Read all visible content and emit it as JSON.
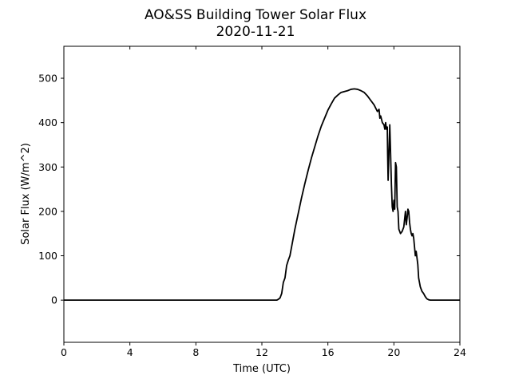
{
  "chart_data": {
    "type": "line",
    "title": "AO&SS Building Tower Solar Flux",
    "subtitle": "2020-11-21",
    "xlabel": "Time (UTC)",
    "ylabel": "Solar Flux (W/m^2)",
    "xlim": [
      0,
      24
    ],
    "ylim": [
      -95,
      572
    ],
    "xticks": [
      "0",
      "4",
      "8",
      "12",
      "16",
      "20",
      "24"
    ],
    "yticks": [
      "0",
      "100",
      "200",
      "300",
      "400",
      "500"
    ],
    "grid": false,
    "line_color": "#000000",
    "series": [
      {
        "x": [
          0,
          12.9,
          13.0,
          13.1,
          13.2,
          13.3,
          13.4,
          13.5,
          13.6,
          13.7,
          13.8,
          13.9,
          14.0,
          14.2,
          14.4,
          14.6,
          14.8,
          15.0,
          15.2,
          15.4,
          15.6,
          15.8,
          16.0,
          16.2,
          16.4,
          16.6,
          16.8,
          17.0,
          17.2,
          17.4,
          17.6,
          17.8,
          18.0,
          18.2,
          18.4,
          18.6,
          18.8,
          19.0,
          19.1,
          19.15,
          19.2,
          19.3,
          19.4,
          19.45,
          19.5,
          19.55,
          19.6,
          19.62,
          19.65,
          19.7,
          19.75,
          19.8,
          19.85,
          19.9,
          19.95,
          20.0,
          20.05,
          20.1,
          20.15,
          20.2,
          20.25,
          20.3,
          20.35,
          20.4,
          20.5,
          20.6,
          20.7,
          20.75,
          20.8,
          20.85,
          20.9,
          20.95,
          21.0,
          21.05,
          21.1,
          21.15,
          21.2,
          21.25,
          21.3,
          21.35,
          21.4,
          21.45,
          21.5,
          21.55,
          21.6,
          21.65,
          21.7,
          21.8,
          21.9,
          22.0,
          22.1,
          22.2,
          22.3,
          22.4,
          22.5,
          24
        ],
        "y": [
          0,
          0,
          2,
          5,
          15,
          40,
          50,
          78,
          90,
          100,
          120,
          140,
          160,
          195,
          230,
          262,
          292,
          320,
          345,
          370,
          392,
          410,
          428,
          442,
          455,
          462,
          468,
          470,
          472,
          475,
          476,
          475,
          472,
          468,
          460,
          450,
          440,
          425,
          430,
          410,
          415,
          400,
          395,
          385,
          400,
          385,
          390,
          330,
          270,
          330,
          395,
          330,
          260,
          210,
          200,
          225,
          205,
          310,
          300,
          210,
          200,
          160,
          155,
          150,
          155,
          165,
          200,
          170,
          185,
          205,
          200,
          175,
          160,
          150,
          145,
          150,
          140,
          120,
          100,
          110,
          95,
          80,
          50,
          40,
          30,
          25,
          20,
          15,
          8,
          3,
          1,
          0,
          0,
          0,
          0,
          0
        ]
      }
    ]
  }
}
